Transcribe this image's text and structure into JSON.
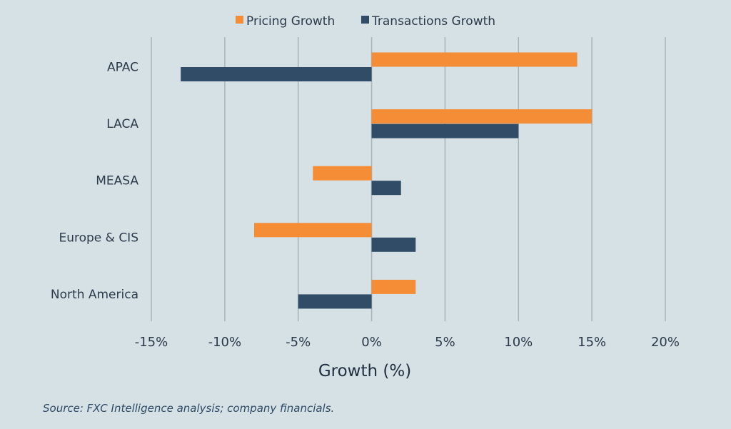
{
  "chart_data": {
    "type": "bar",
    "orientation": "horizontal",
    "categories": [
      "APAC",
      "LACA",
      "MEASA",
      "Europe & CIS",
      "North America"
    ],
    "series": [
      {
        "name": "Pricing Growth",
        "color": "#f58d37",
        "values": [
          14,
          15,
          -4,
          -8,
          3
        ]
      },
      {
        "name": "Transactions Growth",
        "color": "#304c66",
        "values": [
          -13,
          10,
          2,
          3,
          -5
        ]
      }
    ],
    "xlabel": "Growth (%)",
    "xlim": [
      -15,
      20
    ],
    "xticks": [
      "-15%",
      "-10%",
      "-5%",
      "0%",
      "5%",
      "10%",
      "15%",
      "20%"
    ],
    "grid": "vertical",
    "legend": "top"
  },
  "source": "Source: FXC Intelligence analysis; company financials."
}
